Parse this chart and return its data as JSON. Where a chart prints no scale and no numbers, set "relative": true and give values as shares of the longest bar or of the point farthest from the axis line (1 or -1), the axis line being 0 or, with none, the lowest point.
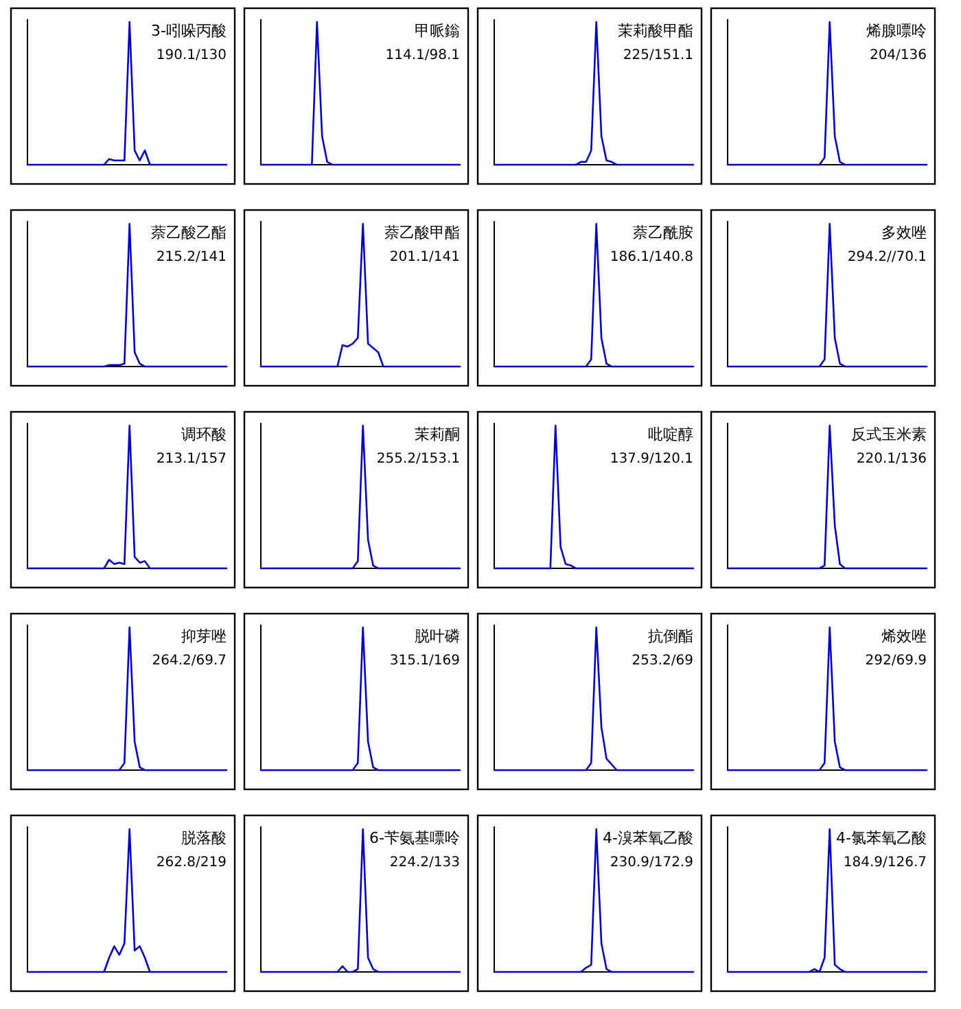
{
  "chart_data": [
    {
      "type": "line",
      "title": "3-吲哚丙酸",
      "subtitle": "190.1/130",
      "relative": true,
      "color": "#0000c8",
      "categories": [
        null,
        null,
        null,
        null,
        null,
        null,
        null,
        null,
        null,
        null,
        null,
        null,
        null,
        null,
        null,
        null,
        null,
        null,
        null,
        null,
        null,
        null,
        null,
        null,
        null,
        null,
        null,
        null,
        null,
        null,
        null,
        null,
        null,
        null,
        null,
        null,
        null,
        null,
        null,
        null
      ],
      "values": [
        0,
        0,
        0,
        0,
        0,
        0,
        0,
        0,
        0,
        0,
        0,
        0,
        0,
        0,
        0,
        0,
        0.04,
        0.03,
        0.03,
        0.03,
        1,
        0.1,
        0.03,
        0.1,
        0,
        0,
        0,
        0,
        0,
        0,
        0,
        0,
        0,
        0,
        0,
        0,
        0,
        0,
        0,
        0
      ]
    },
    {
      "type": "line",
      "title": "甲哌鎓",
      "subtitle": "114.1/98.1",
      "relative": true,
      "color": "#0000c8",
      "categories": [
        null,
        null,
        null,
        null,
        null,
        null,
        null,
        null,
        null,
        null,
        null,
        null,
        null,
        null,
        null,
        null,
        null,
        null,
        null,
        null,
        null,
        null,
        null,
        null,
        null,
        null,
        null,
        null,
        null,
        null,
        null,
        null,
        null,
        null,
        null,
        null,
        null,
        null,
        null,
        null
      ],
      "values": [
        0,
        0,
        0,
        0,
        0,
        0,
        0,
        0,
        0,
        0,
        0,
        1,
        0.2,
        0.02,
        0,
        0,
        0,
        0,
        0,
        0,
        0,
        0,
        0,
        0,
        0,
        0,
        0,
        0,
        0,
        0,
        0,
        0,
        0,
        0,
        0,
        0,
        0,
        0,
        0,
        0
      ]
    },
    {
      "type": "line",
      "title": "茉莉酸甲酯",
      "subtitle": "225/151.1",
      "relative": true,
      "color": "#0000c8",
      "categories": [
        null,
        null,
        null,
        null,
        null,
        null,
        null,
        null,
        null,
        null,
        null,
        null,
        null,
        null,
        null,
        null,
        null,
        null,
        null,
        null,
        null,
        null,
        null,
        null,
        null,
        null,
        null,
        null,
        null,
        null,
        null,
        null,
        null,
        null,
        null,
        null,
        null,
        null,
        null,
        null
      ],
      "values": [
        0,
        0,
        0,
        0,
        0,
        0,
        0,
        0,
        0,
        0,
        0,
        0,
        0,
        0,
        0,
        0,
        0,
        0.02,
        0.02,
        0.1,
        1,
        0.2,
        0.03,
        0.02,
        0,
        0,
        0,
        0,
        0,
        0,
        0,
        0,
        0,
        0,
        0,
        0,
        0,
        0,
        0,
        0
      ]
    },
    {
      "type": "line",
      "title": "烯腺嘌呤",
      "subtitle": "204/136",
      "relative": true,
      "color": "#0000c8",
      "categories": [
        null,
        null,
        null,
        null,
        null,
        null,
        null,
        null,
        null,
        null,
        null,
        null,
        null,
        null,
        null,
        null,
        null,
        null,
        null,
        null,
        null,
        null,
        null,
        null,
        null,
        null,
        null,
        null,
        null,
        null,
        null,
        null,
        null,
        null,
        null,
        null,
        null,
        null,
        null,
        null
      ],
      "values": [
        0,
        0,
        0,
        0,
        0,
        0,
        0,
        0,
        0,
        0,
        0,
        0,
        0,
        0,
        0,
        0,
        0,
        0,
        0,
        0.05,
        1,
        0.2,
        0.02,
        0,
        0,
        0,
        0,
        0,
        0,
        0,
        0,
        0,
        0,
        0,
        0,
        0,
        0,
        0,
        0,
        0
      ]
    },
    {
      "type": "line",
      "title": "萘乙酸乙酯",
      "subtitle": "215.2/141",
      "relative": true,
      "color": "#0000c8",
      "categories": [
        null,
        null,
        null,
        null,
        null,
        null,
        null,
        null,
        null,
        null,
        null,
        null,
        null,
        null,
        null,
        null,
        null,
        null,
        null,
        null,
        null,
        null,
        null,
        null,
        null,
        null,
        null,
        null,
        null,
        null,
        null,
        null,
        null,
        null,
        null,
        null,
        null,
        null,
        null,
        null
      ],
      "values": [
        0,
        0,
        0,
        0,
        0,
        0,
        0,
        0,
        0,
        0,
        0,
        0,
        0,
        0,
        0,
        0,
        0.01,
        0.01,
        0.01,
        0.02,
        1,
        0.1,
        0.02,
        0,
        0,
        0,
        0,
        0,
        0,
        0,
        0,
        0,
        0,
        0,
        0,
        0,
        0,
        0,
        0,
        0
      ]
    },
    {
      "type": "line",
      "title": "萘乙酸甲酯",
      "subtitle": "201.1/141",
      "relative": true,
      "color": "#0000c8",
      "categories": [
        null,
        null,
        null,
        null,
        null,
        null,
        null,
        null,
        null,
        null,
        null,
        null,
        null,
        null,
        null,
        null,
        null,
        null,
        null,
        null,
        null,
        null,
        null,
        null,
        null,
        null,
        null,
        null,
        null,
        null,
        null,
        null,
        null,
        null,
        null,
        null,
        null,
        null,
        null,
        null
      ],
      "values": [
        0,
        0,
        0,
        0,
        0,
        0,
        0,
        0,
        0,
        0,
        0,
        0,
        0,
        0,
        0,
        0,
        0.15,
        0.14,
        0.16,
        0.2,
        1,
        0.16,
        0.13,
        0.1,
        0,
        0,
        0,
        0,
        0,
        0,
        0,
        0,
        0,
        0,
        0,
        0,
        0,
        0,
        0,
        0
      ]
    },
    {
      "type": "line",
      "title": "萘乙酰胺",
      "subtitle": "186.1/140.8",
      "relative": true,
      "color": "#0000c8",
      "categories": [
        null,
        null,
        null,
        null,
        null,
        null,
        null,
        null,
        null,
        null,
        null,
        null,
        null,
        null,
        null,
        null,
        null,
        null,
        null,
        null,
        null,
        null,
        null,
        null,
        null,
        null,
        null,
        null,
        null,
        null,
        null,
        null,
        null,
        null,
        null,
        null,
        null,
        null,
        null,
        null
      ],
      "values": [
        0,
        0,
        0,
        0,
        0,
        0,
        0,
        0,
        0,
        0,
        0,
        0,
        0,
        0,
        0,
        0,
        0,
        0,
        0,
        0.05,
        1,
        0.2,
        0.02,
        0,
        0,
        0,
        0,
        0,
        0,
        0,
        0,
        0,
        0,
        0,
        0,
        0,
        0,
        0,
        0,
        0
      ]
    },
    {
      "type": "line",
      "title": "多效唑",
      "subtitle": "294.2//70.1",
      "relative": true,
      "color": "#0000c8",
      "categories": [
        null,
        null,
        null,
        null,
        null,
        null,
        null,
        null,
        null,
        null,
        null,
        null,
        null,
        null,
        null,
        null,
        null,
        null,
        null,
        null,
        null,
        null,
        null,
        null,
        null,
        null,
        null,
        null,
        null,
        null,
        null,
        null,
        null,
        null,
        null,
        null,
        null,
        null,
        null,
        null
      ],
      "values": [
        0,
        0,
        0,
        0,
        0,
        0,
        0,
        0,
        0,
        0,
        0,
        0,
        0,
        0,
        0,
        0,
        0,
        0,
        0,
        0.05,
        1,
        0.2,
        0.02,
        0,
        0,
        0,
        0,
        0,
        0,
        0,
        0,
        0,
        0,
        0,
        0,
        0,
        0,
        0,
        0,
        0
      ]
    },
    {
      "type": "line",
      "title": "调环酸",
      "subtitle": "213.1/157",
      "relative": true,
      "color": "#0000c8",
      "categories": [
        null,
        null,
        null,
        null,
        null,
        null,
        null,
        null,
        null,
        null,
        null,
        null,
        null,
        null,
        null,
        null,
        null,
        null,
        null,
        null,
        null,
        null,
        null,
        null,
        null,
        null,
        null,
        null,
        null,
        null,
        null,
        null,
        null,
        null,
        null,
        null,
        null,
        null,
        null,
        null
      ],
      "values": [
        0,
        0,
        0,
        0,
        0,
        0,
        0,
        0,
        0,
        0,
        0,
        0,
        0,
        0,
        0,
        0,
        0.06,
        0.03,
        0.04,
        0.03,
        1,
        0.08,
        0.04,
        0.05,
        0,
        0,
        0,
        0,
        0,
        0,
        0,
        0,
        0,
        0,
        0,
        0,
        0,
        0,
        0,
        0
      ]
    },
    {
      "type": "line",
      "title": "茉莉酮",
      "subtitle": "255.2/153.1",
      "relative": true,
      "color": "#0000c8",
      "categories": [
        null,
        null,
        null,
        null,
        null,
        null,
        null,
        null,
        null,
        null,
        null,
        null,
        null,
        null,
        null,
        null,
        null,
        null,
        null,
        null,
        null,
        null,
        null,
        null,
        null,
        null,
        null,
        null,
        null,
        null,
        null,
        null,
        null,
        null,
        null,
        null,
        null,
        null,
        null,
        null
      ],
      "values": [
        0,
        0,
        0,
        0,
        0,
        0,
        0,
        0,
        0,
        0,
        0,
        0,
        0,
        0,
        0,
        0,
        0,
        0,
        0,
        0.05,
        1,
        0.2,
        0.02,
        0,
        0,
        0,
        0,
        0,
        0,
        0,
        0,
        0,
        0,
        0,
        0,
        0,
        0,
        0,
        0,
        0
      ]
    },
    {
      "type": "line",
      "title": "吡啶醇",
      "subtitle": "137.9/120.1",
      "relative": true,
      "color": "#0000c8",
      "categories": [
        null,
        null,
        null,
        null,
        null,
        null,
        null,
        null,
        null,
        null,
        null,
        null,
        null,
        null,
        null,
        null,
        null,
        null,
        null,
        null,
        null,
        null,
        null,
        null,
        null,
        null,
        null,
        null,
        null,
        null,
        null,
        null,
        null,
        null,
        null,
        null,
        null,
        null,
        null,
        null
      ],
      "values": [
        0,
        0,
        0,
        0,
        0,
        0,
        0,
        0,
        0,
        0,
        0,
        0,
        1,
        0.15,
        0.03,
        0.02,
        0,
        0,
        0,
        0,
        0,
        0,
        0,
        0,
        0,
        0,
        0,
        0,
        0,
        0,
        0,
        0,
        0,
        0,
        0,
        0,
        0,
        0,
        0,
        0
      ]
    },
    {
      "type": "line",
      "title": "反式玉米素",
      "subtitle": "220.1/136",
      "relative": true,
      "color": "#0000c8",
      "categories": [
        null,
        null,
        null,
        null,
        null,
        null,
        null,
        null,
        null,
        null,
        null,
        null,
        null,
        null,
        null,
        null,
        null,
        null,
        null,
        null,
        null,
        null,
        null,
        null,
        null,
        null,
        null,
        null,
        null,
        null,
        null,
        null,
        null,
        null,
        null,
        null,
        null,
        null,
        null,
        null
      ],
      "values": [
        0,
        0,
        0,
        0,
        0,
        0,
        0,
        0,
        0,
        0,
        0,
        0,
        0,
        0,
        0,
        0,
        0,
        0,
        0,
        0.02,
        1,
        0.3,
        0.03,
        0,
        0,
        0,
        0,
        0,
        0,
        0,
        0,
        0,
        0,
        0,
        0,
        0,
        0,
        0,
        0,
        0
      ]
    },
    {
      "type": "line",
      "title": "抑芽唑",
      "subtitle": "264.2/69.7",
      "relative": true,
      "color": "#0000c8",
      "categories": [
        null,
        null,
        null,
        null,
        null,
        null,
        null,
        null,
        null,
        null,
        null,
        null,
        null,
        null,
        null,
        null,
        null,
        null,
        null,
        null,
        null,
        null,
        null,
        null,
        null,
        null,
        null,
        null,
        null,
        null,
        null,
        null,
        null,
        null,
        null,
        null,
        null,
        null,
        null,
        null
      ],
      "values": [
        0,
        0,
        0,
        0,
        0,
        0,
        0,
        0,
        0,
        0,
        0,
        0,
        0,
        0,
        0,
        0,
        0,
        0,
        0,
        0.05,
        1,
        0.2,
        0.02,
        0,
        0,
        0,
        0,
        0,
        0,
        0,
        0,
        0,
        0,
        0,
        0,
        0,
        0,
        0,
        0,
        0
      ]
    },
    {
      "type": "line",
      "title": "脱叶磷",
      "subtitle": "315.1/169",
      "relative": true,
      "color": "#0000c8",
      "categories": [
        null,
        null,
        null,
        null,
        null,
        null,
        null,
        null,
        null,
        null,
        null,
        null,
        null,
        null,
        null,
        null,
        null,
        null,
        null,
        null,
        null,
        null,
        null,
        null,
        null,
        null,
        null,
        null,
        null,
        null,
        null,
        null,
        null,
        null,
        null,
        null,
        null,
        null,
        null,
        null
      ],
      "values": [
        0,
        0,
        0,
        0,
        0,
        0,
        0,
        0,
        0,
        0,
        0,
        0,
        0,
        0,
        0,
        0,
        0,
        0,
        0,
        0.05,
        1,
        0.2,
        0.02,
        0,
        0,
        0,
        0,
        0,
        0,
        0,
        0,
        0,
        0,
        0,
        0,
        0,
        0,
        0,
        0,
        0
      ]
    },
    {
      "type": "line",
      "title": "抗倒酯",
      "subtitle": "253.2/69",
      "relative": true,
      "color": "#0000c8",
      "categories": [
        null,
        null,
        null,
        null,
        null,
        null,
        null,
        null,
        null,
        null,
        null,
        null,
        null,
        null,
        null,
        null,
        null,
        null,
        null,
        null,
        null,
        null,
        null,
        null,
        null,
        null,
        null,
        null,
        null,
        null,
        null,
        null,
        null,
        null,
        null,
        null,
        null,
        null,
        null,
        null
      ],
      "values": [
        0,
        0,
        0,
        0,
        0,
        0,
        0,
        0,
        0,
        0,
        0,
        0,
        0,
        0,
        0,
        0,
        0,
        0,
        0,
        0.05,
        1,
        0.3,
        0.08,
        0.04,
        0,
        0,
        0,
        0,
        0,
        0,
        0,
        0,
        0,
        0,
        0,
        0,
        0,
        0,
        0,
        0
      ]
    },
    {
      "type": "line",
      "title": "烯效唑",
      "subtitle": "292/69.9",
      "relative": true,
      "color": "#0000c8",
      "categories": [
        null,
        null,
        null,
        null,
        null,
        null,
        null,
        null,
        null,
        null,
        null,
        null,
        null,
        null,
        null,
        null,
        null,
        null,
        null,
        null,
        null,
        null,
        null,
        null,
        null,
        null,
        null,
        null,
        null,
        null,
        null,
        null,
        null,
        null,
        null,
        null,
        null,
        null,
        null,
        null
      ],
      "values": [
        0,
        0,
        0,
        0,
        0,
        0,
        0,
        0,
        0,
        0,
        0,
        0,
        0,
        0,
        0,
        0,
        0,
        0,
        0,
        0.05,
        1,
        0.2,
        0.02,
        0,
        0,
        0,
        0,
        0,
        0,
        0,
        0,
        0,
        0,
        0,
        0,
        0,
        0,
        0,
        0,
        0
      ]
    },
    {
      "type": "line",
      "title": "脱落酸",
      "subtitle": "262.8/219",
      "relative": true,
      "color": "#0000c8",
      "categories": [
        null,
        null,
        null,
        null,
        null,
        null,
        null,
        null,
        null,
        null,
        null,
        null,
        null,
        null,
        null,
        null,
        null,
        null,
        null,
        null,
        null,
        null,
        null,
        null,
        null,
        null,
        null,
        null,
        null,
        null,
        null,
        null,
        null,
        null,
        null,
        null,
        null,
        null,
        null,
        null
      ],
      "values": [
        0,
        0,
        0,
        0,
        0,
        0,
        0,
        0,
        0,
        0,
        0,
        0,
        0,
        0,
        0,
        0,
        0.1,
        0.18,
        0.12,
        0.2,
        1,
        0.15,
        0.18,
        0.1,
        0,
        0,
        0,
        0,
        0,
        0,
        0,
        0,
        0,
        0,
        0,
        0,
        0,
        0,
        0,
        0
      ]
    },
    {
      "type": "line",
      "title": "6-苄氨基嘌呤",
      "subtitle": "224.2/133",
      "relative": true,
      "color": "#0000c8",
      "categories": [
        null,
        null,
        null,
        null,
        null,
        null,
        null,
        null,
        null,
        null,
        null,
        null,
        null,
        null,
        null,
        null,
        null,
        null,
        null,
        null,
        null,
        null,
        null,
        null,
        null,
        null,
        null,
        null,
        null,
        null,
        null,
        null,
        null,
        null,
        null,
        null,
        null,
        null,
        null,
        null
      ],
      "values": [
        0,
        0,
        0,
        0,
        0,
        0,
        0,
        0,
        0,
        0,
        0,
        0,
        0,
        0,
        0,
        0,
        0.04,
        0,
        0,
        0.02,
        1,
        0.1,
        0.02,
        0,
        0,
        0,
        0,
        0,
        0,
        0,
        0,
        0,
        0,
        0,
        0,
        0,
        0,
        0,
        0,
        0
      ]
    },
    {
      "type": "line",
      "title": "4-溴苯氧乙酸",
      "subtitle": "230.9/172.9",
      "relative": true,
      "color": "#0000c8",
      "categories": [
        null,
        null,
        null,
        null,
        null,
        null,
        null,
        null,
        null,
        null,
        null,
        null,
        null,
        null,
        null,
        null,
        null,
        null,
        null,
        null,
        null,
        null,
        null,
        null,
        null,
        null,
        null,
        null,
        null,
        null,
        null,
        null,
        null,
        null,
        null,
        null,
        null,
        null,
        null,
        null
      ],
      "values": [
        0,
        0,
        0,
        0,
        0,
        0,
        0,
        0,
        0,
        0,
        0,
        0,
        0,
        0,
        0,
        0,
        0,
        0,
        0.03,
        0.05,
        1,
        0.2,
        0.02,
        0,
        0,
        0,
        0,
        0,
        0,
        0,
        0,
        0,
        0,
        0,
        0,
        0,
        0,
        0,
        0,
        0
      ]
    },
    {
      "type": "line",
      "title": "4-氯苯氧乙酸",
      "subtitle": "184.9/126.7",
      "relative": true,
      "color": "#0000c8",
      "categories": [
        null,
        null,
        null,
        null,
        null,
        null,
        null,
        null,
        null,
        null,
        null,
        null,
        null,
        null,
        null,
        null,
        null,
        null,
        null,
        null,
        null,
        null,
        null,
        null,
        null,
        null,
        null,
        null,
        null,
        null,
        null,
        null,
        null,
        null,
        null,
        null,
        null,
        null,
        null,
        null
      ],
      "values": [
        0,
        0,
        0,
        0,
        0,
        0,
        0,
        0,
        0,
        0,
        0,
        0,
        0,
        0,
        0,
        0,
        0,
        0.02,
        0,
        0.1,
        1,
        0.05,
        0.02,
        0,
        0,
        0,
        0,
        0,
        0,
        0,
        0,
        0,
        0,
        0,
        0,
        0,
        0,
        0,
        0,
        0
      ]
    }
  ]
}
